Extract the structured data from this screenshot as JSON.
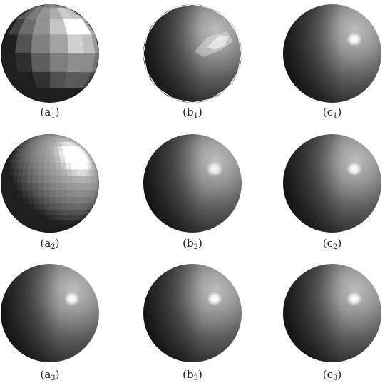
{
  "panels": [
    {
      "id": "a1",
      "letter": "a",
      "index": "1",
      "style": "flat-coarse"
    },
    {
      "id": "b1",
      "letter": "b",
      "index": "1",
      "style": "gouraud-coarse"
    },
    {
      "id": "c1",
      "letter": "c",
      "index": "1",
      "style": "phong"
    },
    {
      "id": "a2",
      "letter": "a",
      "index": "2",
      "style": "flat-fine"
    },
    {
      "id": "b2",
      "letter": "b",
      "index": "2",
      "style": "gouraud-fine"
    },
    {
      "id": "c2",
      "letter": "c",
      "index": "2",
      "style": "phong"
    },
    {
      "id": "a3",
      "letter": "a",
      "index": "3",
      "style": "phong"
    },
    {
      "id": "b3",
      "letter": "b",
      "index": "3",
      "style": "phong"
    },
    {
      "id": "c3",
      "letter": "c",
      "index": "3",
      "style": "phong"
    }
  ],
  "colors": {
    "highlight": "#ffffff",
    "lit": "#8a8a8a",
    "mid": "#4a4a4a",
    "shadow": "#1a1a1a",
    "caption": "#222222"
  }
}
